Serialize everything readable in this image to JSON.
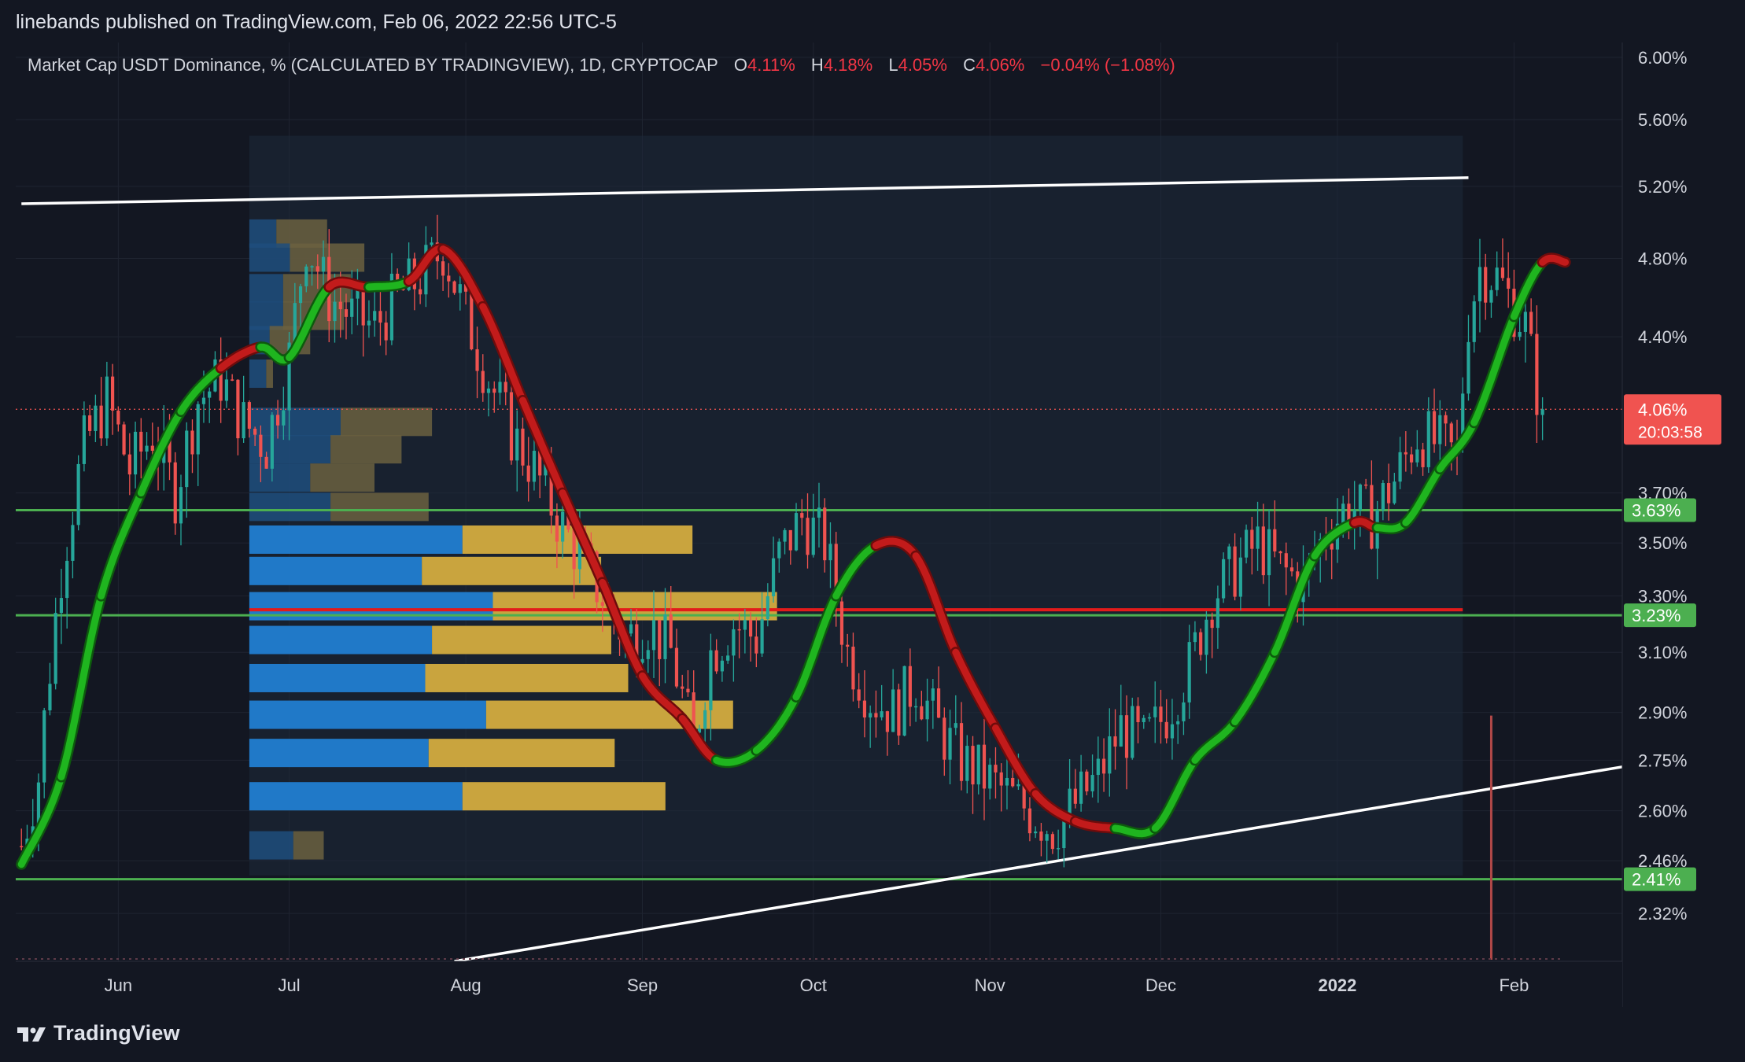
{
  "header": {
    "published": "linebands published on TradingView.com, Feb 06, 2022 22:56 UTC-5"
  },
  "legend": {
    "symbol": "Market Cap USDT Dominance, % (CALCULATED BY TRADINGVIEW), 1D, CRYPTOCAP",
    "o_label": "O",
    "o": "4.11%",
    "h_label": "H",
    "h": "4.18%",
    "l_label": "L",
    "l": "4.05%",
    "c_label": "C",
    "c": "4.06%",
    "change": "−0.04% (−1.08%)"
  },
  "footer": {
    "brand": "TradingView"
  },
  "colors": {
    "background": "#131722",
    "up": "#26a69a",
    "down": "#ef5350",
    "band_up": "#1fb51f",
    "band_down": "#c21b1b",
    "support_line": "#4caf50",
    "price_label": "#f05350",
    "trendline": "#ffffff",
    "vp_up": "#2079c8",
    "vp_down": "#c9a43e"
  },
  "chart_data": {
    "type": "candlestick",
    "symbol": "USDT.D",
    "x_axis_labels": [
      "Jun",
      "Jul",
      "Aug",
      "Sep",
      "Oct",
      "Nov",
      "Dec",
      "2022",
      "Feb"
    ],
    "y_axis_labels": [
      "6.00%",
      "5.60%",
      "5.20%",
      "4.80%",
      "4.40%",
      "3.70%",
      "3.50%",
      "3.30%",
      "3.10%",
      "2.90%",
      "2.75%",
      "2.60%",
      "2.46%",
      "2.32%"
    ],
    "y_scale": "log",
    "ylim": [
      2.2,
      6.1
    ],
    "last_price": "4.06%",
    "countdown": "20:03:58",
    "horizontal_levels": [
      {
        "value": 3.63,
        "label": "3.63%",
        "color": "#4caf50"
      },
      {
        "value": 3.23,
        "label": "3.23%",
        "color": "#4caf50"
      },
      {
        "value": 2.41,
        "label": "2.41%",
        "color": "#4caf50"
      }
    ],
    "poc_level": 3.25,
    "trendlines": [
      {
        "from": [
          "2021-05-15",
          5.1
        ],
        "to": [
          "2022-01-24",
          5.25
        ]
      },
      {
        "from": [
          "2021-07-30",
          2.2
        ],
        "to": [
          "2022-02-20",
          2.73
        ]
      }
    ],
    "vertical_marker_date": "2022-01-28",
    "band_points": [
      [
        "2021-05-15",
        2.45,
        "up"
      ],
      [
        "2021-05-22",
        2.7,
        "up"
      ],
      [
        "2021-05-29",
        3.3,
        "up"
      ],
      [
        "2021-06-05",
        3.7,
        "up"
      ],
      [
        "2021-06-12",
        4.05,
        "up"
      ],
      [
        "2021-06-19",
        4.25,
        "up"
      ],
      [
        "2021-06-26",
        4.35,
        "down"
      ],
      [
        "2021-07-01",
        4.3,
        "up"
      ],
      [
        "2021-07-08",
        4.65,
        "up"
      ],
      [
        "2021-07-15",
        4.65,
        "down"
      ],
      [
        "2021-07-22",
        4.68,
        "up"
      ],
      [
        "2021-07-28",
        4.85,
        "down"
      ],
      [
        "2021-08-04",
        4.55,
        "down"
      ],
      [
        "2021-08-11",
        4.1,
        "down"
      ],
      [
        "2021-08-18",
        3.7,
        "down"
      ],
      [
        "2021-08-25",
        3.35,
        "down"
      ],
      [
        "2021-09-01",
        3.02,
        "down"
      ],
      [
        "2021-09-08",
        2.88,
        "down"
      ],
      [
        "2021-09-14",
        2.75,
        "down"
      ],
      [
        "2021-09-21",
        2.78,
        "up"
      ],
      [
        "2021-09-28",
        2.95,
        "up"
      ],
      [
        "2021-10-05",
        3.3,
        "up"
      ],
      [
        "2021-10-12",
        3.49,
        "up"
      ],
      [
        "2021-10-19",
        3.45,
        "down"
      ],
      [
        "2021-10-26",
        3.1,
        "down"
      ],
      [
        "2021-11-02",
        2.85,
        "down"
      ],
      [
        "2021-11-09",
        2.65,
        "down"
      ],
      [
        "2021-11-16",
        2.57,
        "down"
      ],
      [
        "2021-11-23",
        2.55,
        "down"
      ],
      [
        "2021-11-30",
        2.55,
        "up"
      ],
      [
        "2021-12-07",
        2.75,
        "up"
      ],
      [
        "2021-12-14",
        2.87,
        "up"
      ],
      [
        "2021-12-21",
        3.1,
        "up"
      ],
      [
        "2021-12-28",
        3.45,
        "up"
      ],
      [
        "2022-01-04",
        3.58,
        "up"
      ],
      [
        "2022-01-08",
        3.56,
        "down"
      ],
      [
        "2022-01-13",
        3.58,
        "up"
      ],
      [
        "2022-01-19",
        3.8,
        "up"
      ],
      [
        "2022-01-25",
        4.0,
        "up"
      ],
      [
        "2022-02-01",
        4.5,
        "up"
      ],
      [
        "2022-02-06",
        4.78,
        "up"
      ],
      [
        "2022-02-10",
        4.78,
        "down"
      ]
    ],
    "price_path": [
      [
        "2021-05-15",
        2.5
      ],
      [
        "2021-05-18",
        2.7
      ],
      [
        "2021-05-22",
        3.4
      ],
      [
        "2021-05-26",
        3.9
      ],
      [
        "2021-05-30",
        4.1
      ],
      [
        "2021-06-03",
        3.8
      ],
      [
        "2021-06-07",
        3.95
      ],
      [
        "2021-06-11",
        3.7
      ],
      [
        "2021-06-15",
        4.1
      ],
      [
        "2021-06-19",
        4.2
      ],
      [
        "2021-06-23",
        4.0
      ],
      [
        "2021-06-27",
        3.9
      ],
      [
        "2021-07-01",
        4.3
      ],
      [
        "2021-07-04",
        4.9
      ],
      [
        "2021-07-08",
        4.6
      ],
      [
        "2021-07-12",
        4.5
      ],
      [
        "2021-07-16",
        4.45
      ],
      [
        "2021-07-20",
        4.6
      ],
      [
        "2021-07-24",
        4.7
      ],
      [
        "2021-07-28",
        4.85
      ],
      [
        "2021-08-01",
        4.5
      ],
      [
        "2021-08-05",
        4.2
      ],
      [
        "2021-08-09",
        3.95
      ],
      [
        "2021-08-13",
        3.8
      ],
      [
        "2021-08-17",
        3.6
      ],
      [
        "2021-08-21",
        3.45
      ],
      [
        "2021-08-25",
        3.3
      ],
      [
        "2021-08-29",
        3.15
      ],
      [
        "2021-09-02",
        3.2
      ],
      [
        "2021-09-06",
        3.1
      ],
      [
        "2021-09-10",
        2.8
      ],
      [
        "2021-09-13",
        3.1
      ],
      [
        "2021-09-17",
        3.2
      ],
      [
        "2021-09-21",
        3.15
      ],
      [
        "2021-09-25",
        3.45
      ],
      [
        "2021-09-29",
        3.6
      ],
      [
        "2021-10-03",
        3.5
      ],
      [
        "2021-10-07",
        3.1
      ],
      [
        "2021-10-11",
        2.95
      ],
      [
        "2021-10-15",
        2.9
      ],
      [
        "2021-10-19",
        3.0
      ],
      [
        "2021-10-23",
        2.85
      ],
      [
        "2021-10-27",
        2.75
      ],
      [
        "2021-10-31",
        2.7
      ],
      [
        "2021-11-04",
        2.65
      ],
      [
        "2021-11-08",
        2.6
      ],
      [
        "2021-11-12",
        2.55
      ],
      [
        "2021-11-16",
        2.62
      ],
      [
        "2021-11-20",
        2.7
      ],
      [
        "2021-11-24",
        2.85
      ],
      [
        "2021-11-28",
        2.8
      ],
      [
        "2021-12-02",
        2.9
      ],
      [
        "2021-12-06",
        3.05
      ],
      [
        "2021-12-10",
        3.3
      ],
      [
        "2021-12-14",
        3.4
      ],
      [
        "2021-12-18",
        3.5
      ],
      [
        "2021-12-22",
        3.4
      ],
      [
        "2021-12-26",
        3.35
      ],
      [
        "2021-12-30",
        3.55
      ],
      [
        "2022-01-03",
        3.65
      ],
      [
        "2022-01-07",
        3.6
      ],
      [
        "2022-01-11",
        3.75
      ],
      [
        "2022-01-15",
        3.95
      ],
      [
        "2022-01-19",
        3.9
      ],
      [
        "2022-01-22",
        3.85
      ],
      [
        "2022-01-24",
        4.5
      ],
      [
        "2022-01-26",
        4.75
      ],
      [
        "2022-01-29",
        4.7
      ],
      [
        "2022-02-01",
        4.55
      ],
      [
        "2022-02-03",
        4.45
      ],
      [
        "2022-02-05",
        4.15
      ],
      [
        "2022-02-06",
        4.06
      ]
    ],
    "volume_profile": [
      {
        "price": 4.93,
        "up": 0.08,
        "down": 0.15
      },
      {
        "price": 4.8,
        "up": 0.12,
        "down": 0.22
      },
      {
        "price": 4.64,
        "up": 0.1,
        "down": 0.2
      },
      {
        "price": 4.5,
        "up": 0.1,
        "down": 0.18
      },
      {
        "price": 4.38,
        "up": 0.06,
        "down": 0.12
      },
      {
        "price": 4.22,
        "up": 0.05,
        "down": 0.02
      },
      {
        "price": 4.0,
        "up": 0.27,
        "down": 0.27
      },
      {
        "price": 3.88,
        "up": 0.24,
        "down": 0.21
      },
      {
        "price": 3.76,
        "up": 0.18,
        "down": 0.19
      },
      {
        "price": 3.64,
        "up": 0.24,
        "down": 0.29
      },
      {
        "price": 3.51,
        "up": 0.63,
        "down": 0.68
      },
      {
        "price": 3.39,
        "up": 0.51,
        "down": 0.53
      },
      {
        "price": 3.26,
        "up": 0.72,
        "down": 0.84
      },
      {
        "price": 3.14,
        "up": 0.54,
        "down": 0.53
      },
      {
        "price": 3.01,
        "up": 0.52,
        "down": 0.6
      },
      {
        "price": 2.89,
        "up": 0.7,
        "down": 0.73
      },
      {
        "price": 2.77,
        "up": 0.53,
        "down": 0.55
      },
      {
        "price": 2.64,
        "up": 0.63,
        "down": 0.6
      },
      {
        "price": 2.5,
        "up": 0.13,
        "down": 0.09
      }
    ]
  }
}
